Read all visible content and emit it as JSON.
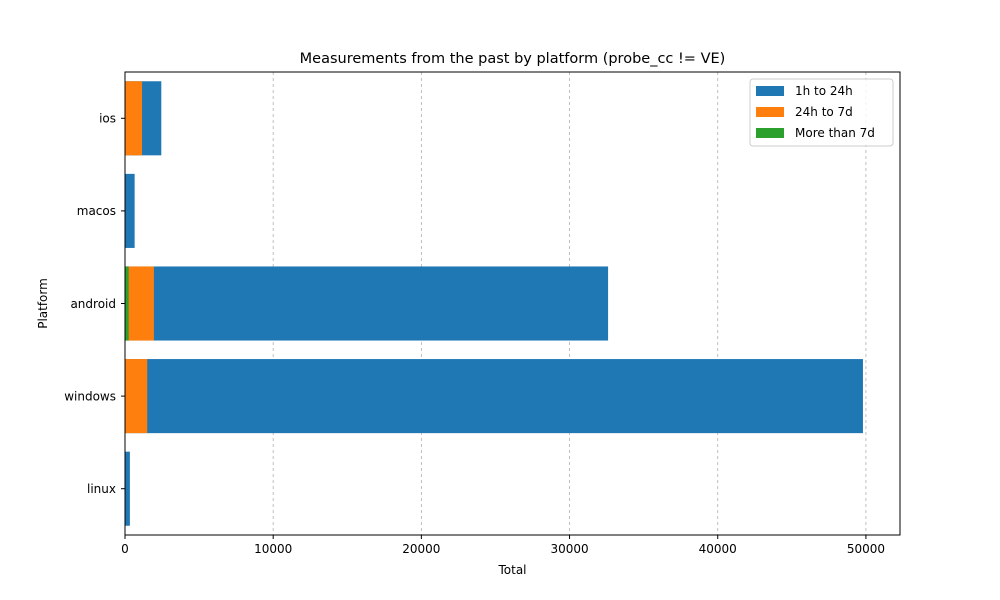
{
  "chart_data": {
    "type": "bar",
    "orientation": "horizontal",
    "stacked": "overlapped",
    "title": "Measurements from the past by platform (probe_cc != VE)",
    "xlabel": "Total",
    "ylabel": "Platform",
    "categories": [
      "linux",
      "windows",
      "android",
      "macos",
      "ios"
    ],
    "series": [
      {
        "name": "1h to 24h",
        "color": "#1f77b4",
        "values": [
          330,
          49800,
          32600,
          650,
          2450
        ]
      },
      {
        "name": "24h to 7d",
        "color": "#ff7f0e",
        "values": [
          0,
          1500,
          1950,
          0,
          1150
        ]
      },
      {
        "name": "More than 7d",
        "color": "#2ca02c",
        "values": [
          0,
          0,
          250,
          0,
          0
        ]
      }
    ],
    "xlim": [
      0,
      52300
    ],
    "xticks": [
      0,
      10000,
      20000,
      30000,
      40000,
      50000
    ],
    "xtick_labels": [
      "0",
      "10000",
      "20000",
      "30000",
      "40000",
      "50000"
    ],
    "grid": "x-dashed",
    "legend": "top-right"
  }
}
